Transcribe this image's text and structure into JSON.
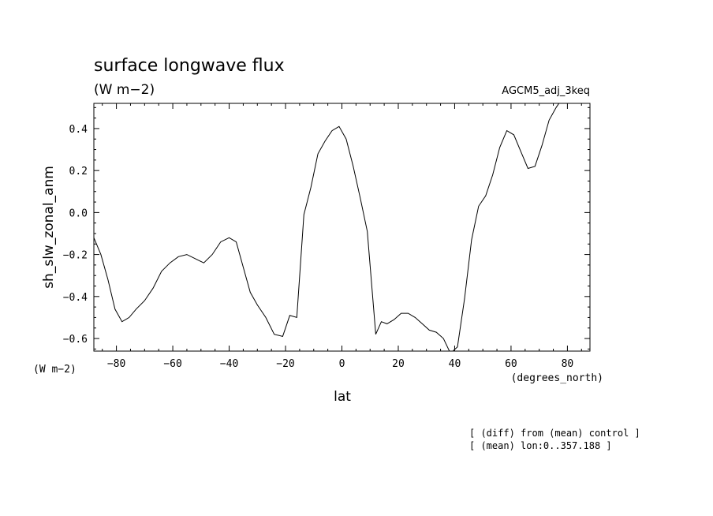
{
  "chart_data": {
    "type": "line",
    "title": "surface longwave flux",
    "subtitle": "(W m−2)",
    "experiment": "AGCM5_adj_3keq",
    "ylabel": "sh_slw_zonal_anm",
    "yunit": "(W m−2)",
    "xlabel": "lat",
    "xunit": "(degrees_north)",
    "xlim": [
      -88,
      88
    ],
    "ylim": [
      -0.66,
      0.52
    ],
    "xticks": [
      -80,
      -60,
      -40,
      -20,
      0,
      20,
      40,
      60,
      80
    ],
    "xtick_labels": [
      "−80",
      "−60",
      "−40",
      "−20",
      "0",
      "20",
      "40",
      "60",
      "80"
    ],
    "yticks": [
      -0.6,
      -0.4,
      -0.2,
      0.0,
      0.2,
      0.4
    ],
    "ytick_labels": [
      "−0.6",
      "−0.4",
      "−0.2",
      "0.0",
      "0.2",
      "0.4"
    ],
    "grid": false,
    "series": [
      {
        "x": [
          -88,
          -85.5,
          -83,
          -80.5,
          -78,
          -75.5,
          -73,
          -70,
          -67,
          -64,
          -61,
          -58,
          -55,
          -52,
          -49,
          -46,
          -43,
          -40,
          -37.5,
          -35,
          -32.5,
          -30,
          -27,
          -24,
          -21,
          -18.5,
          -16,
          -13.5,
          -11,
          -8.5,
          -6,
          -3.5,
          -1,
          1.5,
          4,
          6.5,
          9,
          12,
          14,
          16,
          18.5,
          21,
          23.5,
          26,
          28.5,
          31,
          33.5,
          36,
          38.5,
          41,
          43.5,
          46,
          48.5,
          51,
          53.5,
          56,
          58.5,
          61,
          63.5,
          66,
          68.5,
          71,
          73.5,
          76,
          78.5,
          81,
          83.5,
          86,
          88
        ],
        "y": [
          -0.12,
          -0.2,
          -0.32,
          -0.46,
          -0.52,
          -0.5,
          -0.46,
          -0.42,
          -0.36,
          -0.28,
          -0.24,
          -0.21,
          -0.2,
          -0.22,
          -0.24,
          -0.2,
          -0.14,
          -0.12,
          -0.14,
          -0.26,
          -0.38,
          -0.44,
          -0.5,
          -0.58,
          -0.59,
          -0.49,
          -0.5,
          -0.01,
          0.12,
          0.28,
          0.34,
          0.39,
          0.41,
          0.35,
          0.22,
          0.07,
          -0.09,
          -0.58,
          -0.52,
          -0.53,
          -0.51,
          -0.48,
          -0.48,
          -0.5,
          -0.53,
          -0.56,
          -0.57,
          -0.6,
          -0.67,
          -0.64,
          -0.41,
          -0.13,
          0.03,
          0.08,
          0.18,
          0.31,
          0.39,
          0.37,
          0.29,
          0.21,
          0.22,
          0.32,
          0.44,
          0.5,
          0.55,
          0.55,
          0.55,
          0.55,
          0.55
        ]
      }
    ]
  },
  "footnotes": [
    "[ (diff) from (mean) control ]",
    "[ (mean) lon:0..357.188 ]"
  ]
}
